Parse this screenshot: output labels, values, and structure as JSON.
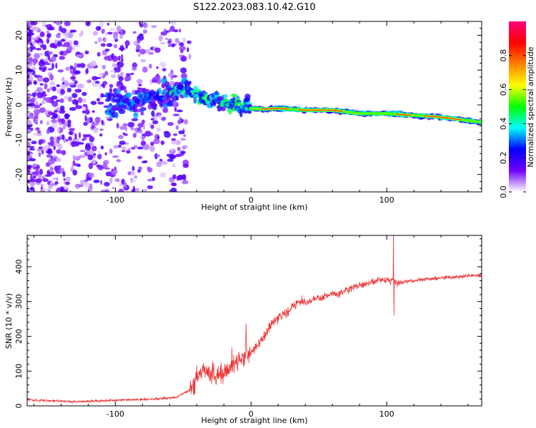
{
  "title": "S122.2023.083.10.42.G10",
  "chart_data": [
    {
      "type": "heatmap",
      "xlabel": "Height of straight line (km)",
      "ylabel": "Frequency (Hz)",
      "xlim": [
        -165,
        170
      ],
      "ylim": [
        -25,
        24
      ],
      "x_tick_labels": [
        "-100",
        "0",
        "100"
      ],
      "x_tick_values": [
        -100,
        0,
        100
      ],
      "y_tick_labels": [
        "-20",
        "-10",
        "0",
        "10",
        "20"
      ],
      "y_tick_values": [
        -20,
        -10,
        0,
        10,
        20
      ],
      "ridge_track": {
        "x": [
          -100,
          -80,
          -60,
          -50,
          -40,
          -30,
          -20,
          -10,
          0,
          10,
          20,
          40,
          60,
          80,
          100,
          120,
          140,
          160,
          170
        ],
        "frequency": [
          0.5,
          1,
          3,
          5,
          3,
          1,
          0.5,
          0,
          -1,
          -1.2,
          -1,
          -1.5,
          -1.5,
          -2.5,
          -2.5,
          -3,
          -3.5,
          -4.5,
          -5
        ]
      },
      "colorbar": {
        "label": "Normalized spectral amplitude",
        "range": [
          0,
          1
        ],
        "tick_labels": [
          "0.0",
          "0.2",
          "0.4",
          "0.6",
          "0.8"
        ],
        "tick_values": [
          0,
          0.2,
          0.4,
          0.6,
          0.8
        ],
        "colors": [
          "#ffffff",
          "#7000ff",
          "#0000ff",
          "#00ffff",
          "#00ff00",
          "#ffff00",
          "#ff8000",
          "#ff0000",
          "#ff0080"
        ]
      },
      "grid": false
    },
    {
      "type": "line",
      "xlabel": "Height of straight line (km)",
      "ylabel": "SNR (10 * v/v)",
      "xlim": [
        -165,
        170
      ],
      "ylim": [
        0,
        490
      ],
      "x_tick_labels": [
        "-100",
        "0",
        "100"
      ],
      "x_tick_values": [
        -100,
        0,
        100
      ],
      "y_tick_labels": [
        "0",
        "100",
        "200",
        "300",
        "400"
      ],
      "y_tick_values": [
        0,
        100,
        200,
        300,
        400
      ],
      "series": [
        {
          "color": "#ee3333",
          "x": [
            -165,
            -150,
            -130,
            -110,
            -90,
            -70,
            -55,
            -45,
            -40,
            -35,
            -30,
            -25,
            -20,
            -15,
            -10,
            -5,
            0,
            5,
            10,
            15,
            20,
            25,
            30,
            35,
            40,
            45,
            50,
            55,
            60,
            65,
            70,
            75,
            80,
            85,
            90,
            95,
            100,
            103,
            105,
            108,
            110,
            120,
            130,
            140,
            150,
            160,
            170
          ],
          "values": [
            18,
            15,
            12,
            15,
            17,
            20,
            25,
            45,
            80,
            100,
            90,
            85,
            95,
            110,
            130,
            140,
            155,
            175,
            205,
            235,
            255,
            265,
            280,
            300,
            295,
            305,
            310,
            315,
            325,
            320,
            330,
            340,
            345,
            350,
            358,
            360,
            365,
            355,
            360,
            350,
            355,
            360,
            365,
            368,
            370,
            375,
            375
          ]
        }
      ],
      "spikes": [
        {
          "x": 105,
          "values": [
            490,
            260
          ]
        }
      ],
      "grid": false
    }
  ]
}
